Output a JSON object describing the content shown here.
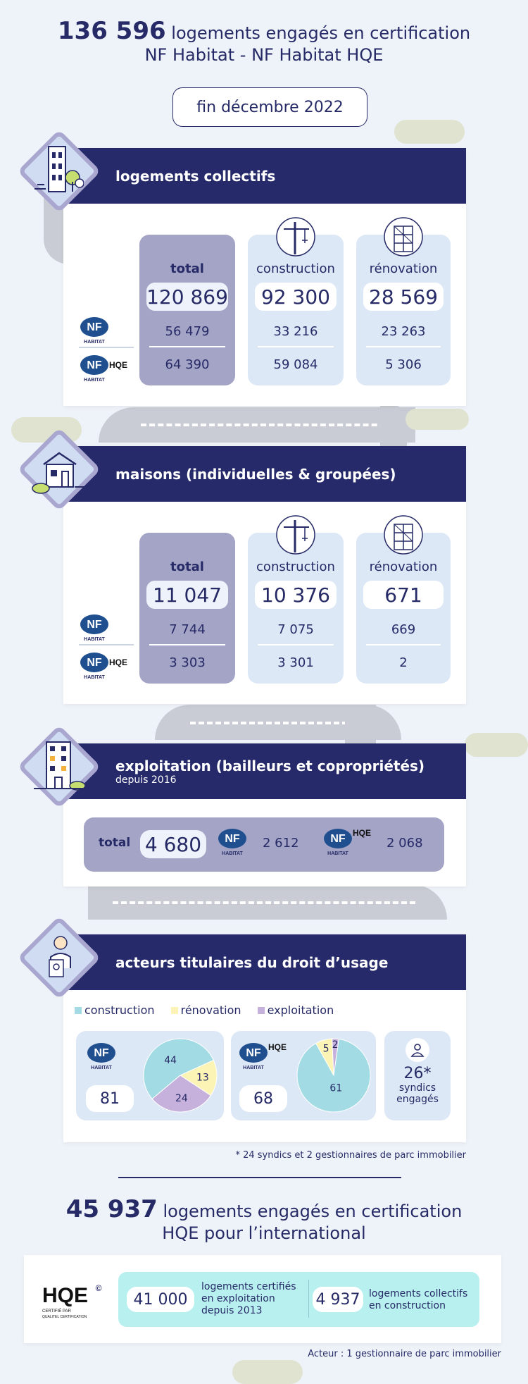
{
  "header": {
    "count": "136 596",
    "line1_rest": "logements engagés en certification",
    "line2": "NF Habitat - NF Habitat HQE",
    "date": "fin décembre 2022"
  },
  "logos": {
    "nf": "NF",
    "habitat": "HABITAT",
    "hqe": "HQE",
    "hqe_reg": "®",
    "hqe_cert_line1": "CERTIFIÉ PAR",
    "hqe_cert_line2": "QUALITEL CERTIFICATION",
    "hqe_circle": "©"
  },
  "collectifs": {
    "title": "logements collectifs",
    "total": {
      "label": "total",
      "big": "120 869",
      "nf": "56 479",
      "hqe": "64 390"
    },
    "construction": {
      "label": "construction",
      "big": "92 300",
      "nf": "33 216",
      "hqe": "59 084"
    },
    "renovation": {
      "label": "rénovation",
      "big": "28 569",
      "nf": "23 263",
      "hqe": "5 306"
    }
  },
  "maisons": {
    "title": "maisons (individuelles & groupées)",
    "total": {
      "label": "total",
      "big": "11 047",
      "nf": "7 744",
      "hqe": "3 303"
    },
    "construction": {
      "label": "construction",
      "big": "10 376",
      "nf": "7 075",
      "hqe": "3 301"
    },
    "renovation": {
      "label": "rénovation",
      "big": "671",
      "nf": "669",
      "hqe": "2"
    }
  },
  "exploitation": {
    "title": "exploitation (bailleurs et copropriétés)",
    "subtitle": "depuis 2016",
    "total_label": "total",
    "total": "4 680",
    "nf": "2 612",
    "hqe": "2 068"
  },
  "acteurs": {
    "title": "acteurs titulaires du droit d’usage",
    "legend": [
      {
        "label": "construction",
        "color": "#a2dbe3"
      },
      {
        "label": "rénovation",
        "color": "#fbf4b4"
      },
      {
        "label": "exploitation",
        "color": "#c6b0dc"
      }
    ],
    "nf_total": "81",
    "nf_values": {
      "construction": 44,
      "renovation": 13,
      "exploitation": 24
    },
    "hqe_total": "68",
    "hqe_values": {
      "construction": 61,
      "renovation": 5,
      "exploitation": 2
    },
    "syndics_count": "26*",
    "syndics_line1": "syndics",
    "syndics_line2": "engagés",
    "footnote": "* 24 syndics et 2 gestionnaires de parc immobilier"
  },
  "international": {
    "count": "45 937",
    "line1_rest": "logements engagés en certification",
    "line2": "HQE pour l’international",
    "box1_num": "41 000",
    "box1_text1": "logements certifiés",
    "box1_text2": "en exploitation",
    "box1_text3": "depuis 2013",
    "box2_num": "4 937",
    "box2_text1": "logements collectifs",
    "box2_text2": "en construction",
    "footnote": "Acteur : 1 gestionnaire de parc immobilier"
  }
}
